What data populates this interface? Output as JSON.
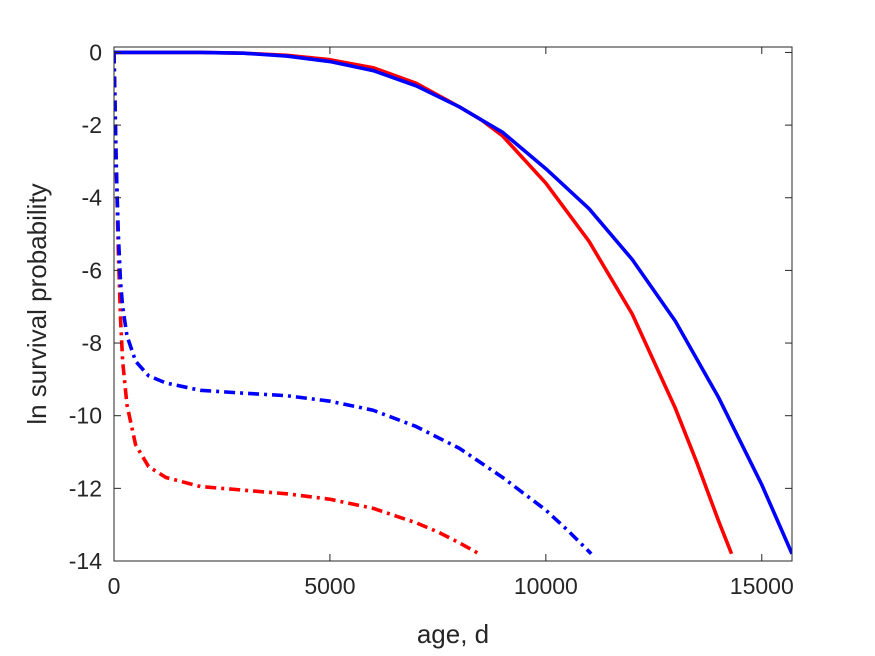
{
  "chart_data": {
    "type": "line",
    "title": "",
    "xlabel": "age, d",
    "ylabel": "ln survival probability",
    "xlim": [
      0,
      15700
    ],
    "ylim": [
      -14,
      0.15
    ],
    "xticks": [
      0,
      5000,
      10000,
      15000
    ],
    "yticks": [
      0,
      -2,
      -4,
      -6,
      -8,
      -10,
      -12,
      -14
    ],
    "xtick_labels": [
      "0",
      "5000",
      "10000",
      "15000"
    ],
    "ytick_labels": [
      "0",
      "-2",
      "-4",
      "-6",
      "-8",
      "-10",
      "-12",
      "-14"
    ],
    "grid": false,
    "legend": "none",
    "series": [
      {
        "color": "#ff0000",
        "style": "solid",
        "x": [
          0,
          1000,
          2000,
          3000,
          4000,
          5000,
          6000,
          7000,
          8000,
          8500,
          9000,
          10000,
          11000,
          12000,
          13000,
          13500,
          14000,
          14300
        ],
        "y": [
          0,
          0,
          0,
          -0.02,
          -0.08,
          -0.2,
          -0.42,
          -0.85,
          -1.5,
          -1.85,
          -2.3,
          -3.6,
          -5.2,
          -7.2,
          -9.8,
          -11.3,
          -12.9,
          -13.8
        ]
      },
      {
        "color": "#0000ff",
        "style": "solid",
        "x": [
          0,
          1000,
          2000,
          3000,
          4000,
          5000,
          6000,
          7000,
          8000,
          8500,
          9000,
          10000,
          11000,
          12000,
          13000,
          14000,
          15000,
          15700
        ],
        "y": [
          0,
          0,
          0,
          -0.02,
          -0.1,
          -0.25,
          -0.5,
          -0.92,
          -1.5,
          -1.85,
          -2.2,
          -3.2,
          -4.3,
          -5.7,
          -7.4,
          -9.5,
          -11.9,
          -13.8
        ]
      },
      {
        "color": "#ff0000",
        "style": "dashdot",
        "x": [
          0,
          50,
          100,
          150,
          200,
          300,
          500,
          800,
          1200,
          2000,
          3000,
          4000,
          5000,
          6000,
          7000,
          7500,
          8000,
          8450
        ],
        "y": [
          0,
          -3.0,
          -5.5,
          -7.3,
          -8.5,
          -9.7,
          -10.8,
          -11.4,
          -11.7,
          -11.95,
          -12.05,
          -12.15,
          -12.3,
          -12.55,
          -12.95,
          -13.2,
          -13.5,
          -13.8
        ]
      },
      {
        "color": "#0000ff",
        "style": "dashdot",
        "x": [
          0,
          50,
          100,
          150,
          200,
          300,
          500,
          800,
          1200,
          2000,
          3000,
          4000,
          5000,
          6000,
          7000,
          8000,
          9000,
          10000,
          10500,
          11050
        ],
        "y": [
          0,
          -3.0,
          -5.0,
          -6.3,
          -7.0,
          -7.8,
          -8.5,
          -8.9,
          -9.1,
          -9.3,
          -9.38,
          -9.45,
          -9.6,
          -9.85,
          -10.3,
          -10.9,
          -11.7,
          -12.6,
          -13.15,
          -13.8
        ]
      }
    ]
  }
}
